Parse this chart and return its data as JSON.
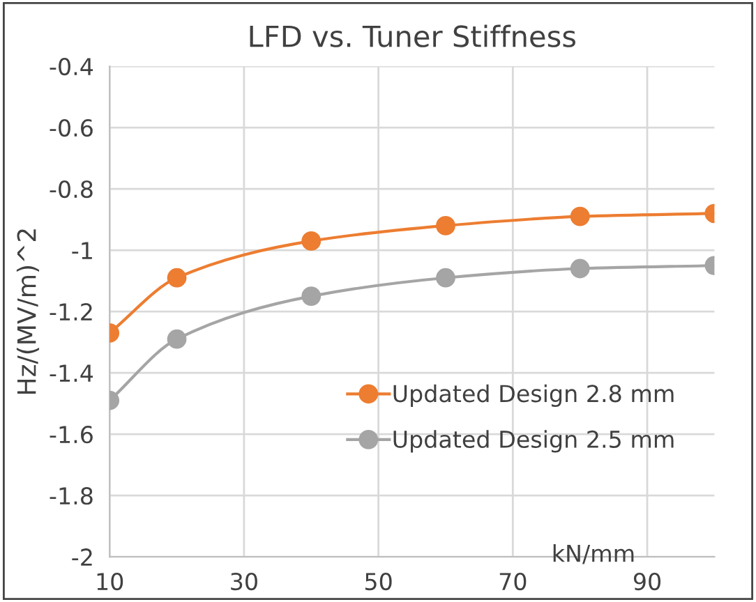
{
  "chart_data": {
    "type": "line",
    "title": "LFD vs. Tuner Stiffness",
    "xlabel": "kN/mm",
    "ylabel": "Hz/(MV/m)^2",
    "x": [
      10,
      20,
      40,
      60,
      80,
      100
    ],
    "series": [
      {
        "name": "Updated Design 2.8 mm",
        "color": "#ed7d31",
        "values": [
          -1.27,
          -1.09,
          -0.97,
          -0.92,
          -0.89,
          -0.88
        ]
      },
      {
        "name": "Updated Design 2.5 mm",
        "color": "#a5a5a5",
        "values": [
          -1.49,
          -1.29,
          -1.15,
          -1.09,
          -1.06,
          -1.05
        ]
      }
    ],
    "xlim": [
      10,
      100
    ],
    "xticks": [
      10,
      30,
      50,
      70,
      90
    ],
    "ylim": [
      -2,
      -0.4
    ],
    "yticks": [
      -2,
      -1.8,
      -1.6,
      -1.4,
      -1.2,
      -1,
      -0.8,
      -0.6,
      -0.4
    ],
    "grid": true,
    "legend": "bottom right",
    "marker": "circle",
    "line_style": "solid"
  }
}
